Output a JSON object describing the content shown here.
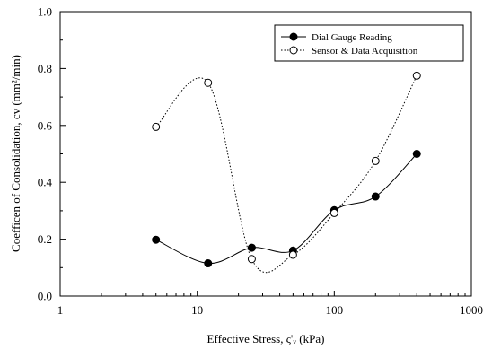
{
  "chart_data": {
    "type": "line",
    "xlabel": "Effective Stress, ς'ᵥ (kPa)",
    "ylabel": "Coefficen of Consolidation, cv (mm²/min)",
    "xscale": "log",
    "xlim": [
      1,
      1000
    ],
    "ylim": [
      0.0,
      1.0
    ],
    "x_ticks": [
      "1",
      "10",
      "100",
      "1000"
    ],
    "y_ticks": [
      "0.0",
      "0.2",
      "0.4",
      "0.6",
      "0.8",
      "1.0"
    ],
    "grid": false,
    "legend_position": "top-right",
    "series": [
      {
        "name": "Dial Gauge Reading",
        "marker": "filled-circle",
        "line": "solid",
        "color": "#000000",
        "x": [
          5,
          12,
          25,
          50,
          100,
          200,
          400
        ],
        "y": [
          0.198,
          0.115,
          0.17,
          0.16,
          0.302,
          0.35,
          0.5
        ]
      },
      {
        "name": "Sensor & Data Acquisition",
        "marker": "open-circle",
        "line": "dotted",
        "color": "#000000",
        "x": [
          5,
          12,
          25,
          50,
          100,
          200,
          400
        ],
        "y": [
          0.595,
          0.75,
          0.13,
          0.145,
          0.292,
          0.475,
          0.775
        ]
      }
    ]
  }
}
